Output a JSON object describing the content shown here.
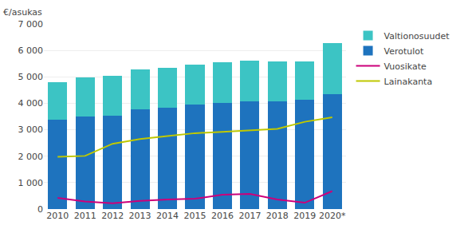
{
  "chart_data": {
    "type": "bar",
    "stacked": true,
    "categories": [
      "2010",
      "2011",
      "2012",
      "2013",
      "2014",
      "2015",
      "2016",
      "2017",
      "2018",
      "2019",
      "2020*"
    ],
    "series": [
      {
        "name": "Valtionosuudet",
        "type": "bar",
        "color": "#3cc4c4",
        "values": [
          1420,
          1480,
          1530,
          1510,
          1500,
          1510,
          1560,
          1530,
          1530,
          1460,
          1940
        ]
      },
      {
        "name": "Verotulot",
        "type": "bar",
        "color": "#1e73be",
        "values": [
          3380,
          3500,
          3520,
          3780,
          3840,
          3960,
          4000,
          4070,
          4060,
          4120,
          4330
        ]
      },
      {
        "name": "Vuosikate",
        "type": "line",
        "color": "#cc007a",
        "values": [
          420,
          290,
          220,
          310,
          360,
          390,
          540,
          570,
          360,
          240,
          680
        ]
      },
      {
        "name": "Lainakanta",
        "type": "line",
        "color": "#bfc800",
        "values": [
          1980,
          2010,
          2470,
          2650,
          2760,
          2870,
          2920,
          2980,
          3030,
          3300,
          3470
        ]
      }
    ],
    "ylabel": "€/asukas",
    "ylim": [
      0,
      7000
    ],
    "yticks": [
      0,
      {
        "value": 1000,
        "label": "1 000"
      },
      {
        "value": 2000,
        "label": "2 000"
      },
      {
        "value": 3000,
        "label": "3 000"
      },
      {
        "value": 4000,
        "label": "4 000"
      },
      {
        "value": 5000,
        "label": "5 000"
      },
      {
        "value": 6000,
        "label": "6 000"
      },
      {
        "value": 7000,
        "label": "7 000"
      }
    ],
    "grid": true,
    "legend": "right"
  }
}
